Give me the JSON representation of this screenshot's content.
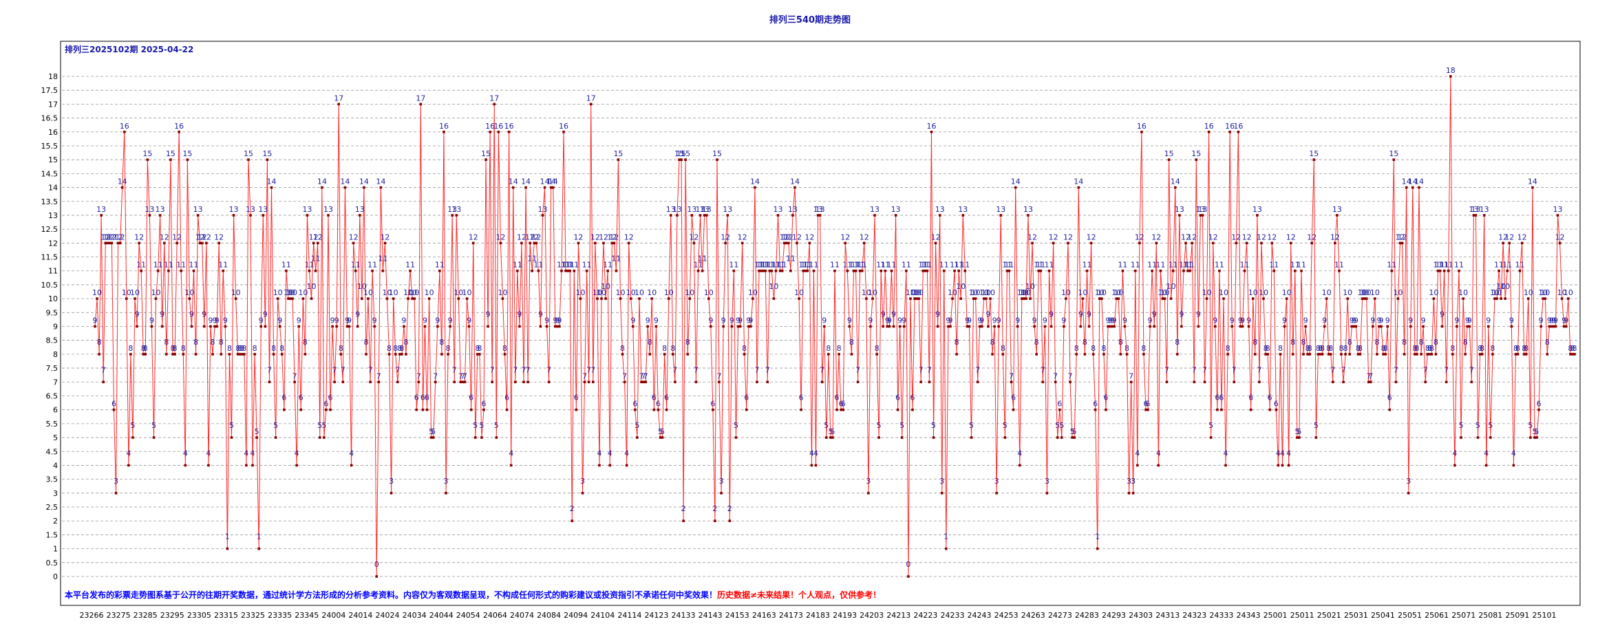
{
  "title": "排列三540期走势图",
  "subtitle": "排列三2025102期  2025-04-22",
  "disclaimer": {
    "blue": "本平台发布的彩票走势图系基于公开的往期开奖数据，通过统计学方法形成的分析参考资料。内容仅为客观数据呈现，不构成任何形式的购彩建议或投资指引不承诺任何中奖效果！",
    "red": "历史数据≠未来结果！个人观点，仅供参考！"
  },
  "colors": {
    "line": "#ff2a2a",
    "point": "#8b0000",
    "label": "#1f1f9e",
    "title": "#1a1aa8",
    "disclaimer_blue": "#0000ff",
    "disclaimer_red": "#ff0000",
    "grid": "#999999"
  },
  "chart_data": {
    "type": "line",
    "y_ticks": [
      "0",
      "0.5",
      "1",
      "1.5",
      "2",
      "2.5",
      "3",
      "3.5",
      "4",
      "4.5",
      "5",
      "5.5",
      "6",
      "6.5",
      "7",
      "7.5",
      "8",
      "8.5",
      "9",
      "9.5",
      "10",
      "10.5",
      "11",
      "11.5",
      "12",
      "12.5",
      "13",
      "13.5",
      "14",
      "14.5",
      "15",
      "15.5",
      "16",
      "16.5",
      "17",
      "17.5",
      "18"
    ],
    "ylim": [
      0,
      18
    ],
    "grid": true,
    "x_tick_labels": [
      "23266",
      "23275",
      "23285",
      "23295",
      "23305",
      "23315",
      "23325",
      "23335",
      "23345",
      "24004",
      "24014",
      "24024",
      "24034",
      "24044",
      "24054",
      "24064",
      "24074",
      "24084",
      "24094",
      "24104",
      "24114",
      "24123",
      "24133",
      "24143",
      "24153",
      "24163",
      "24173",
      "24183",
      "24193",
      "24203",
      "24213",
      "24223",
      "24233",
      "24243",
      "24253",
      "24263",
      "24273",
      "24283",
      "24293",
      "24303",
      "24313",
      "24323",
      "24333",
      "24343",
      "25001",
      "25011",
      "25021",
      "25031",
      "25041",
      "25051",
      "25061",
      "25071",
      "25081",
      "25091",
      "25101"
    ],
    "series": [
      {
        "values": [
          9,
          10,
          8,
          13,
          7,
          12,
          12,
          12,
          12,
          6,
          3,
          12,
          12,
          14,
          16,
          10,
          4,
          8,
          5,
          10,
          9,
          12,
          11,
          8,
          8,
          15,
          13,
          9,
          5,
          10,
          11,
          13,
          9,
          12,
          8,
          11,
          15,
          8,
          8,
          12,
          16,
          11,
          8,
          4,
          15,
          10,
          9,
          11,
          8,
          13,
          12,
          12,
          9,
          12,
          4,
          9,
          8,
          9,
          9,
          12,
          8,
          11,
          9,
          1,
          8,
          5,
          13,
          10,
          8,
          8,
          8,
          8,
          4,
          15,
          13,
          4,
          8,
          5,
          1,
          9,
          13,
          9,
          15,
          7,
          14,
          8,
          5,
          10,
          9,
          8,
          6,
          11,
          10,
          10,
          10,
          7,
          4,
          9,
          6,
          10,
          8,
          13,
          11,
          10,
          12,
          11,
          12,
          5,
          14,
          5,
          6,
          13,
          6,
          9,
          7,
          9,
          17,
          8,
          7,
          14,
          9,
          9,
          4,
          12,
          11,
          9,
          13,
          10,
          14,
          8,
          10,
          7,
          11,
          9,
          0,
          7,
          14,
          11,
          12,
          10,
          8,
          3,
          10,
          8,
          7,
          8,
          8,
          9,
          8,
          10,
          11,
          10,
          10,
          6,
          7,
          17,
          6,
          9,
          6,
          10,
          5,
          5,
          7,
          9,
          11,
          8,
          16,
          3,
          8,
          9,
          13,
          7,
          13,
          10,
          7,
          7,
          7,
          10,
          9,
          6,
          12,
          5,
          8,
          8,
          5,
          6,
          15,
          9,
          16,
          7,
          17,
          5,
          16,
          12,
          10,
          8,
          6,
          16,
          4,
          14,
          7,
          11,
          9,
          12,
          7,
          14,
          7,
          12,
          11,
          12,
          12,
          11,
          9,
          13,
          14,
          9,
          7,
          14,
          14,
          9,
          9,
          9,
          11,
          16,
          11,
          11,
          11,
          2,
          11,
          6,
          12,
          10,
          3,
          7,
          11,
          7,
          17,
          7,
          12,
          10,
          4,
          10,
          12,
          10,
          11,
          4,
          12,
          12,
          11,
          15,
          10,
          8,
          7,
          4,
          12,
          10,
          9,
          6,
          5,
          10,
          7,
          7,
          7,
          9,
          8,
          10,
          6,
          9,
          6,
          5,
          5,
          8,
          6,
          10,
          13,
          8,
          7,
          13,
          15,
          15,
          2,
          15,
          8,
          10,
          13,
          12,
          7,
          11,
          13,
          11,
          13,
          13,
          10,
          9,
          6,
          2,
          15,
          7,
          3,
          9,
          12,
          13,
          2,
          9,
          11,
          5,
          9,
          9,
          12,
          8,
          6,
          9,
          9,
          10,
          14,
          7,
          11,
          11,
          11,
          11,
          7,
          11,
          11,
          10,
          11,
          13,
          11,
          11,
          12,
          12,
          12,
          11,
          13,
          14,
          12,
          10,
          6,
          11,
          11,
          11,
          12,
          4,
          11,
          4,
          13,
          13,
          7,
          9,
          5,
          8,
          5,
          5,
          11,
          6,
          8,
          6,
          6,
          12,
          11,
          9,
          8,
          11,
          11,
          7,
          11,
          11,
          12,
          10,
          3,
          9,
          10,
          13,
          8,
          5,
          11,
          9,
          11,
          9,
          9,
          11,
          9,
          13,
          6,
          9,
          5,
          9,
          11,
          0,
          10,
          6,
          10,
          10,
          10,
          7,
          11,
          11,
          11,
          7,
          16,
          5,
          12,
          9,
          13,
          3,
          11,
          1,
          9,
          9,
          10,
          11,
          8,
          11,
          10,
          13,
          11,
          9,
          9,
          5,
          10,
          10,
          7,
          9,
          9,
          10,
          10,
          9,
          10,
          8,
          9,
          3,
          9,
          13,
          8,
          5,
          11,
          11,
          7,
          6,
          14,
          9,
          4,
          10,
          10,
          10,
          13,
          10,
          12,
          9,
          8,
          11,
          11,
          7,
          9,
          3,
          11,
          9,
          12,
          7,
          5,
          6,
          5,
          9,
          10,
          12,
          7,
          5,
          5,
          8,
          14,
          9,
          10,
          8,
          11,
          9,
          12,
          8,
          6,
          1,
          10,
          10,
          8,
          6,
          9,
          9,
          9,
          9,
          10,
          10,
          8,
          11,
          9,
          8,
          3,
          7,
          3,
          11,
          4,
          12,
          16,
          8,
          6,
          6,
          9,
          11,
          9,
          12,
          4,
          11,
          10,
          10,
          7,
          15,
          10,
          11,
          14,
          8,
          13,
          9,
          11,
          12,
          11,
          11,
          12,
          7,
          15,
          9,
          13,
          13,
          7,
          10,
          16,
          5,
          12,
          9,
          6,
          11,
          6,
          10,
          4,
          8,
          16,
          9,
          7,
          12,
          16,
          9,
          9,
          11,
          12,
          9,
          6,
          10,
          8,
          13,
          7,
          12,
          10,
          8,
          8,
          6,
          12,
          11,
          6,
          4,
          8,
          4,
          9,
          10,
          4,
          12,
          8,
          11,
          5,
          5,
          11,
          8,
          9,
          8,
          8,
          12,
          15,
          5,
          8,
          8,
          8,
          9,
          10,
          8,
          8,
          7,
          12,
          13,
          11,
          8,
          7,
          8,
          10,
          8,
          9,
          9,
          9,
          8,
          8,
          10,
          10,
          10,
          7,
          7,
          9,
          10,
          8,
          9,
          9,
          8,
          8,
          9,
          6,
          11,
          15,
          7,
          10,
          12,
          12,
          8,
          14,
          3,
          9,
          14,
          8,
          8,
          14,
          8,
          9,
          7,
          8,
          8,
          8,
          10,
          8,
          11,
          11,
          9,
          11,
          7,
          11,
          18,
          8,
          4,
          9,
          11,
          5,
          10,
          8,
          9,
          9,
          7,
          13,
          13,
          5,
          8,
          8,
          13,
          4,
          9,
          5,
          8,
          10,
          10,
          11,
          10,
          12,
          10,
          11,
          12,
          9,
          4,
          8,
          8,
          11,
          12,
          8,
          8,
          10,
          5,
          14,
          5,
          5,
          6,
          9,
          10,
          10,
          8,
          9,
          9,
          9,
          9,
          13,
          12,
          10,
          9,
          9,
          10,
          8,
          8,
          8
        ]
      }
    ]
  }
}
